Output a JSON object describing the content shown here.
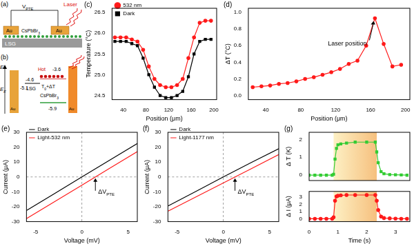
{
  "diagrams": {
    "a": {
      "panel_label": "(a)",
      "voltage_label": {
        "text": "V",
        "subscript": "PTE"
      },
      "laser_label": "Laser",
      "electrode": "Au",
      "film": {
        "text": "CsPbBr",
        "subscript": "3"
      },
      "substrate": "LSG"
    },
    "b": {
      "panel_label": "(b)",
      "energy_label": "E",
      "fermi_label": {
        "text": "E",
        "subscript": "F"
      },
      "au_level": -5.1,
      "lsg_level": -4.6,
      "cb_level": -3.6,
      "vb_level": -5.9,
      "hot_label": "Hot",
      "substrate": "LSG",
      "film": {
        "text": "CsPbBr",
        "subscript": "3"
      },
      "electrode": "Au",
      "temperature_label": {
        "text": "T",
        "subscript": "0",
        "suffix": "+ΔT"
      }
    }
  },
  "chart_data": [
    {
      "type": "line",
      "panel_label": "(c)",
      "x_label": "Position (μm)",
      "y_label": "Temperature (°C)",
      "x": [
        25,
        35,
        45,
        55,
        65,
        75,
        85,
        95,
        105,
        115,
        125,
        135,
        145,
        155,
        165,
        175,
        185,
        195
      ],
      "series": [
        {
          "name": "532 nm",
          "color": "#ff1a1a",
          "marker": "circle",
          "line_style": "solid",
          "values": [
            25.9,
            25.9,
            25.9,
            25.85,
            25.8,
            25.6,
            25.2,
            24.9,
            24.75,
            24.7,
            24.7,
            24.75,
            24.9,
            25.4,
            25.9,
            26.25,
            26.3,
            26.3
          ]
        },
        {
          "name": "Dark",
          "color": "#000000",
          "marker": "square",
          "line_style": "solid",
          "values": [
            25.8,
            25.8,
            25.8,
            25.75,
            25.7,
            25.4,
            25.0,
            24.7,
            24.5,
            24.45,
            24.45,
            24.5,
            24.6,
            24.95,
            25.5,
            25.8,
            25.85,
            25.85
          ]
        }
      ],
      "xlim": [
        20,
        205
      ],
      "xticks": [
        40,
        80,
        120,
        160,
        200
      ],
      "ylim": [
        24.4,
        26.6
      ],
      "yticks": [
        24.5,
        {
          "value": 25,
          "label": "25.0"
        },
        25.5,
        {
          "value": 26,
          "label": "26.0"
        },
        26.5
      ],
      "grid": false,
      "legend": "upper left"
    },
    {
      "type": "line",
      "panel_label": "(d)",
      "x_label": "Position (μm)",
      "y_label": "ΔT (°C)",
      "x": [
        25,
        35,
        45,
        55,
        65,
        75,
        85,
        95,
        105,
        115,
        125,
        135,
        145,
        155,
        165,
        175,
        185,
        195
      ],
      "series": [
        {
          "name": "ΔT",
          "color": "#ff1a1a",
          "marker": "circle",
          "line_style": "solid",
          "values": [
            0.1,
            0.11,
            0.12,
            0.14,
            0.15,
            0.17,
            0.2,
            0.22,
            0.25,
            0.28,
            0.32,
            0.38,
            0.42,
            0.6,
            0.93,
            0.62,
            0.35,
            0.37
          ]
        }
      ],
      "annotation": {
        "text": "Laser position"
      },
      "xlim": [
        20,
        205
      ],
      "xticks": [
        40,
        80,
        120,
        160,
        200
      ],
      "ylim": [
        -0.05,
        1.05
      ],
      "yticks": [
        {
          "value": 0,
          "label": "0.0"
        },
        0.2,
        0.4,
        0.6,
        0.8,
        {
          "value": 1,
          "label": "1.0"
        }
      ],
      "grid": false
    },
    {
      "type": "line",
      "panel_label": "(e)",
      "x_label": "Voltage (mV)",
      "y_label": "Current (μA)",
      "x": [
        -6,
        -3,
        0,
        3,
        6
      ],
      "series": [
        {
          "name": "Dark",
          "color": "#000000",
          "marker": "none",
          "line_style": "solid",
          "values": [
            -22.5,
            -11.3,
            0,
            11.3,
            22.5
          ]
        },
        {
          "name": "Light-532 nm",
          "color": "#ff1a1a",
          "marker": "none",
          "line_style": "solid",
          "values": [
            -28,
            -16.8,
            -5.5,
            5.8,
            17
          ]
        }
      ],
      "reference_x": 0,
      "reference_y": 0,
      "annotation": {
        "text": "ΔV",
        "subscript": "PTE"
      },
      "xlim": [
        -6,
        6
      ],
      "xticks": [
        -5,
        0,
        5
      ],
      "ylim": [
        -30,
        30
      ],
      "yticks": [
        -30,
        -20,
        -10,
        0,
        10,
        20,
        30
      ],
      "grid": false,
      "legend": "upper left"
    },
    {
      "type": "line",
      "panel_label": "(f)",
      "x_label": "Voltage (mV)",
      "y_label": "Current (μA)",
      "x": [
        -6,
        -3,
        0,
        3,
        6
      ],
      "series": [
        {
          "name": "Dark",
          "color": "#000000",
          "marker": "none",
          "line_style": "solid",
          "values": [
            -19.5,
            -9.8,
            0,
            9.6,
            19
          ]
        },
        {
          "name": "Light-1177 nm",
          "color": "#ff1a1a",
          "marker": "none",
          "line_style": "solid",
          "values": [
            -23,
            -13.5,
            -4,
            5.5,
            15
          ]
        }
      ],
      "reference_x": 0,
      "reference_y": 0,
      "annotation": {
        "text": "ΔV",
        "subscript": "PTE"
      },
      "xlim": [
        -6,
        6
      ],
      "xticks": [
        -5,
        0,
        5
      ],
      "ylim": [
        -30,
        30
      ],
      "yticks": [
        -30,
        -20,
        -10,
        0,
        10,
        20,
        30
      ],
      "grid": false,
      "legend": "upper left"
    },
    {
      "type": "line",
      "panel_label": "(g)",
      "y_label": "Δ T (K)",
      "x": [
        0,
        0.2,
        0.4,
        0.6,
        0.8,
        0.85,
        0.9,
        0.95,
        1.0,
        1.1,
        1.3,
        1.6,
        2.0,
        2.3,
        2.35,
        2.4,
        2.5,
        2.6,
        2.8,
        3.0,
        3.2,
        3.4
      ],
      "series": [
        {
          "name": "Δ T",
          "color": "#33cc33",
          "marker": "square",
          "line_style": "solid",
          "values": [
            0,
            0,
            0,
            0,
            0,
            0.05,
            0.9,
            1.5,
            1.7,
            1.75,
            1.8,
            1.85,
            1.85,
            1.85,
            1.3,
            0.7,
            0.2,
            0.08,
            0.03,
            0.02,
            0.01,
            0
          ]
        }
      ],
      "shaded_range": [
        0.85,
        2.35
      ],
      "xlim": [
        0,
        3.5
      ],
      "xticks": [
        0,
        1,
        2,
        3
      ],
      "ylim": [
        -0.3,
        2.4
      ],
      "yticks": [
        0,
        1,
        2
      ],
      "grid": false,
      "tick_labels": "y"
    },
    {
      "type": "line",
      "x_label": "Time (s)",
      "y_label": "Δ I (μA)",
      "x": [
        0,
        0.2,
        0.4,
        0.6,
        0.8,
        0.85,
        0.9,
        0.95,
        1.0,
        1.1,
        1.3,
        1.6,
        2.0,
        2.3,
        2.35,
        2.4,
        2.5,
        2.6,
        2.8,
        3.0,
        3.2,
        3.4
      ],
      "series": [
        {
          "name": "Δ I",
          "color": "#ff1a1a",
          "marker": "circle",
          "line_style": "solid",
          "values": [
            0,
            0,
            0,
            0,
            0,
            0.2,
            2.5,
            3.1,
            3.2,
            3.25,
            3.3,
            3.3,
            3.3,
            3.3,
            2.5,
            1.2,
            0.3,
            0.1,
            0.05,
            0.02,
            0,
            0
          ]
        }
      ],
      "shaded_range": [
        0.85,
        2.35
      ],
      "xlim": [
        0,
        3.5
      ],
      "xticks": [
        0,
        1,
        2,
        3
      ],
      "ylim": [
        -0.4,
        3.8
      ],
      "yticks": [
        0,
        1,
        2,
        3
      ],
      "grid": false
    }
  ]
}
